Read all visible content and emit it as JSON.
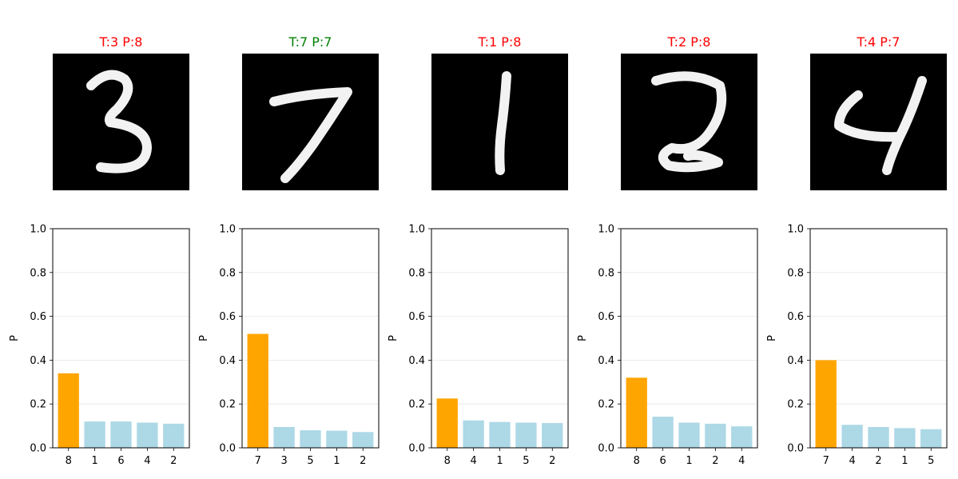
{
  "colors": {
    "correct": "#008000",
    "wrong": "#ff0000",
    "top_bar": "#ffa500",
    "other_bar": "#add8e6",
    "grid": "#e6e6e6"
  },
  "chart_data": [
    {
      "type": "bar",
      "title": "T:3  P:8",
      "correct": false,
      "categories": [
        "8",
        "1",
        "6",
        "4",
        "2"
      ],
      "values": [
        0.34,
        0.12,
        0.12,
        0.115,
        0.11
      ],
      "ylabel": "P",
      "ylim": [
        0,
        1.0
      ],
      "yticks": [
        "0.0",
        "0.2",
        "0.4",
        "0.6",
        "0.8",
        "1.0"
      ],
      "grid": "y"
    },
    {
      "type": "bar",
      "title": "T:7  P:7",
      "correct": true,
      "categories": [
        "7",
        "3",
        "5",
        "1",
        "2"
      ],
      "values": [
        0.52,
        0.095,
        0.08,
        0.078,
        0.072
      ],
      "ylabel": "P",
      "ylim": [
        0,
        1.0
      ],
      "yticks": [
        "0.0",
        "0.2",
        "0.4",
        "0.6",
        "0.8",
        "1.0"
      ],
      "grid": "y"
    },
    {
      "type": "bar",
      "title": "T:1  P:8",
      "correct": false,
      "categories": [
        "8",
        "4",
        "1",
        "5",
        "2"
      ],
      "values": [
        0.225,
        0.125,
        0.118,
        0.115,
        0.113
      ],
      "ylabel": "P",
      "ylim": [
        0,
        1.0
      ],
      "yticks": [
        "0.0",
        "0.2",
        "0.4",
        "0.6",
        "0.8",
        "1.0"
      ],
      "grid": "y"
    },
    {
      "type": "bar",
      "title": "T:2  P:8",
      "correct": false,
      "categories": [
        "8",
        "6",
        "1",
        "2",
        "4"
      ],
      "values": [
        0.32,
        0.142,
        0.115,
        0.11,
        0.098
      ],
      "ylabel": "P",
      "ylim": [
        0,
        1.0
      ],
      "yticks": [
        "0.0",
        "0.2",
        "0.4",
        "0.6",
        "0.8",
        "1.0"
      ],
      "grid": "y"
    },
    {
      "type": "bar",
      "title": "T:4  P:7",
      "correct": false,
      "categories": [
        "7",
        "4",
        "2",
        "1",
        "5"
      ],
      "values": [
        0.4,
        0.105,
        0.095,
        0.09,
        0.085
      ],
      "ylabel": "P",
      "ylim": [
        0,
        1.0
      ],
      "yticks": [
        "0.0",
        "0.2",
        "0.4",
        "0.6",
        "0.8",
        "1.0"
      ],
      "grid": "y"
    }
  ]
}
